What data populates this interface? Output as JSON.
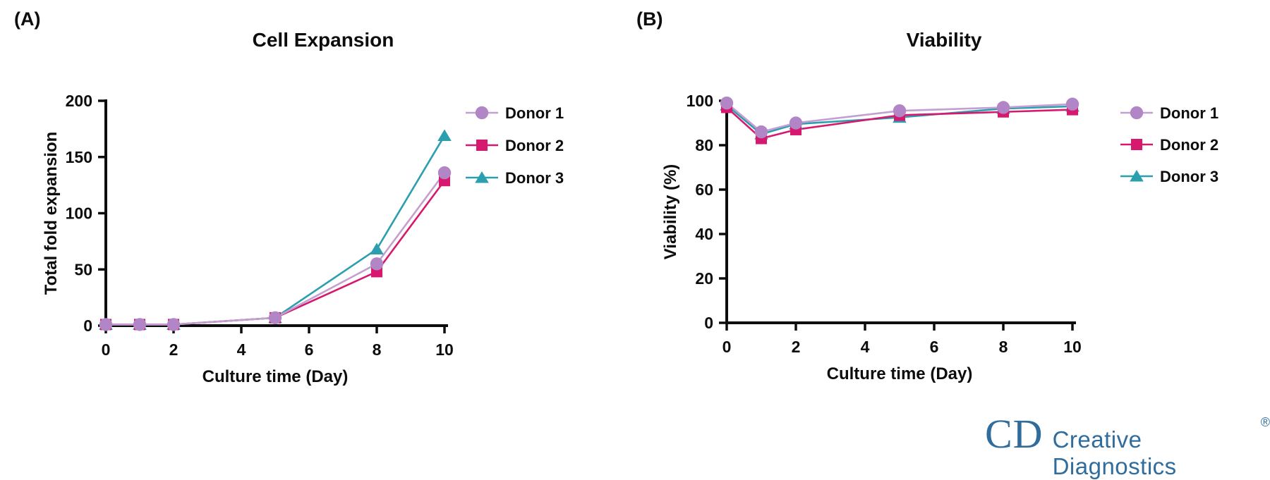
{
  "panels": [
    {
      "label": "(A)"
    },
    {
      "label": "(B)"
    }
  ],
  "colors": {
    "donor1_marker": "#b286c6",
    "donor1_line": "#c39fd2",
    "donor2": "#d6186e",
    "donor3": "#2b9fae",
    "axis_text": "#0d0d0d",
    "logo_blue": "#306c9c"
  },
  "chart_data": [
    {
      "type": "line",
      "title": "Cell Expansion",
      "xlabel": "Culture time (Day)",
      "ylabel": "Total fold expansion",
      "x": [
        0,
        1,
        2,
        5,
        8,
        10
      ],
      "xticks": [
        0,
        2,
        4,
        6,
        8,
        10
      ],
      "yticks": [
        0,
        50,
        100,
        150,
        200
      ],
      "xlim": [
        0,
        10
      ],
      "ylim": [
        0,
        200
      ],
      "grid": false,
      "legend_position": "right",
      "series": [
        {
          "name": "Donor 1",
          "marker": "circle",
          "line_color": "#c39fd2",
          "marker_color": "#b286c6",
          "values": [
            1,
            1,
            1,
            7,
            55,
            136
          ]
        },
        {
          "name": "Donor 2",
          "marker": "square",
          "line_color": "#d6186e",
          "marker_color": "#d6186e",
          "values": [
            1,
            1,
            1,
            7,
            48,
            129
          ]
        },
        {
          "name": "Donor 3",
          "marker": "triangle",
          "line_color": "#2b9fae",
          "marker_color": "#2b9fae",
          "values": [
            1,
            1,
            1,
            7,
            68,
            169
          ]
        }
      ]
    },
    {
      "type": "line",
      "title": "Viability",
      "xlabel": "Culture time (Day)",
      "ylabel": "Viability (%)",
      "x": [
        0,
        1,
        2,
        5,
        8,
        10
      ],
      "xticks": [
        0,
        2,
        4,
        6,
        8,
        10
      ],
      "yticks": [
        0,
        20,
        40,
        60,
        80,
        100
      ],
      "xlim": [
        0,
        10
      ],
      "ylim": [
        0,
        100
      ],
      "grid": false,
      "legend_position": "right",
      "series": [
        {
          "name": "Donor 1",
          "marker": "circle",
          "line_color": "#c39fd2",
          "marker_color": "#b286c6",
          "values": [
            99,
            86,
            90,
            95.5,
            97,
            98.5
          ]
        },
        {
          "name": "Donor 2",
          "marker": "square",
          "line_color": "#d6186e",
          "marker_color": "#d6186e",
          "values": [
            97,
            83,
            87,
            93.5,
            95,
            96
          ]
        },
        {
          "name": "Donor 3",
          "marker": "triangle",
          "line_color": "#2b9fae",
          "marker_color": "#2b9fae",
          "values": [
            98,
            85,
            89.5,
            92.5,
            96.5,
            97.5
          ]
        }
      ]
    }
  ],
  "logo": {
    "monogram": "CD",
    "name": "Creative Diagnostics",
    "registered": "®"
  }
}
